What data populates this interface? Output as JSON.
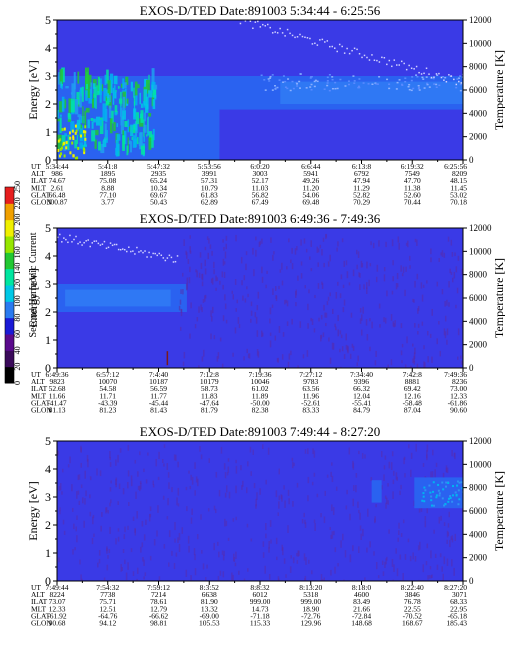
{
  "colors": {
    "background": "#3a3ae6",
    "colorbar": [
      "#000000",
      "#3a0a5a",
      "#5a0a8c",
      "#1a1ad6",
      "#2a7af0",
      "#00c8e6",
      "#00e6a0",
      "#22c832",
      "#96e600",
      "#f0f000",
      "#f0a000",
      "#e61e1e"
    ]
  },
  "colorbar": {
    "label": "Second Harmonic Current",
    "ticks": [
      "0",
      "20",
      "40",
      "60",
      "80",
      "100",
      "120",
      "140",
      "160",
      "180",
      "200",
      "220",
      "250"
    ]
  },
  "chart_data": [
    {
      "type": "heatmap",
      "title": "EXOS-D/TED   Date:891003  5:34:44 - 6:25:56",
      "ylabel": "Energy [eV]",
      "y2label": "Temperature [K]",
      "ylim": [
        0,
        5
      ],
      "y2lim": [
        0,
        12000
      ],
      "yticks": [
        "0",
        "1",
        "2",
        "3",
        "4",
        "5"
      ],
      "y2ticks": [
        "0",
        "2000",
        "4000",
        "6000",
        "8000",
        "10000",
        "12000"
      ],
      "row_labels": [
        "UT",
        "ALT",
        "ILAT",
        "MLT",
        "GLAT",
        "GLON"
      ],
      "columns": [
        [
          "5:34:44",
          "986",
          "74.67",
          "2.61",
          "66.48",
          "300.87"
        ],
        [
          "5:41:8",
          "1895",
          "75.08",
          "8.88",
          "77.10",
          "3.77"
        ],
        [
          "5:47:32",
          "2935",
          "65.24",
          "10.34",
          "69.67",
          "50.43"
        ],
        [
          "5:53:56",
          "3991",
          "57.31",
          "10.79",
          "61.83",
          "62.89"
        ],
        [
          "6:0:20",
          "3003",
          "52.17",
          "11.03",
          "56.82",
          "67.49"
        ],
        [
          "6:6:44",
          "5941",
          "49.26",
          "11.20",
          "54.06",
          "69.48"
        ],
        [
          "6:13:8",
          "6792",
          "47.94",
          "11.29",
          "52.82",
          "70.29"
        ],
        [
          "6:19:32",
          "7549",
          "47.70",
          "11.38",
          "52.60",
          "70.44"
        ],
        [
          "6:25:56",
          "8209",
          "48.15",
          "11.45",
          "53.02",
          "70.18"
        ]
      ]
    },
    {
      "type": "heatmap",
      "title": "EXOS-D/TED   Date:891003  6:49:36 - 7:49:36",
      "ylabel": "Energy [eV]",
      "y2label": "Temperature [K]",
      "ylim": [
        0,
        5
      ],
      "y2lim": [
        0,
        12000
      ],
      "yticks": [
        "0",
        "1",
        "2",
        "3",
        "4",
        "5"
      ],
      "y2ticks": [
        "0",
        "2000",
        "4000",
        "6000",
        "8000",
        "10000",
        "12000"
      ],
      "row_labels": [
        "UT",
        "ALT",
        "ILAT",
        "MLT",
        "GLAT",
        "GLON"
      ],
      "columns": [
        [
          "6:49:36",
          "9823",
          "52.68",
          "11.66",
          "-41.47",
          "81.13"
        ],
        [
          "6:57:12",
          "10070",
          "54.58",
          "11.71",
          "-43.39",
          "81.23"
        ],
        [
          "7:4:40",
          "10187",
          "56.59",
          "11.77",
          "-45.44",
          "81.43"
        ],
        [
          "7:12:8",
          "10179",
          "58.73",
          "11.83",
          "-47.64",
          "81.79"
        ],
        [
          "7:19:36",
          "10046",
          "61.02",
          "11.89",
          "-50.00",
          "82.38"
        ],
        [
          "7:27:12",
          "9783",
          "63.56",
          "11.96",
          "-52.61",
          "83.33"
        ],
        [
          "7:34:40",
          "9396",
          "66.32",
          "12.04",
          "-55.41",
          "84.79"
        ],
        [
          "7:42:8",
          "8881",
          "69.42",
          "12.16",
          "-58.48",
          "87.04"
        ],
        [
          "7:49:36",
          "8236",
          "73.00",
          "12.33",
          "-61.86",
          "90.60"
        ]
      ]
    },
    {
      "type": "heatmap",
      "title": "EXOS-D/TED   Date:891003  7:49:44 - 8:27:20",
      "ylabel": "Energy [eV]",
      "y2label": "Temperature [K]",
      "ylim": [
        0,
        5
      ],
      "y2lim": [
        0,
        12000
      ],
      "yticks": [
        "0",
        "1",
        "2",
        "3",
        "4",
        "5"
      ],
      "y2ticks": [
        "0",
        "2000",
        "4000",
        "6000",
        "8000",
        "10000",
        "12000"
      ],
      "row_labels": [
        "UT",
        "ALT",
        "ILAT",
        "MLT",
        "GLAT",
        "GLON"
      ],
      "columns": [
        [
          "7:49:44",
          "8224",
          "73.07",
          "12.33",
          "-61.92",
          "90.68"
        ],
        [
          "7:54:32",
          "7738",
          "75.71",
          "12.51",
          "-64.76",
          "94.12"
        ],
        [
          "7:59:12",
          "7214",
          "78.61",
          "12.79",
          "-66.62",
          "98.81"
        ],
        [
          "8:3:52",
          "6638",
          "81.90",
          "13.32",
          "-69.00",
          "105.53"
        ],
        [
          "8:8:32",
          "6012",
          "999.00",
          "14.73",
          "-71.18",
          "115.33"
        ],
        [
          "8:13:20",
          "5318",
          "999.00",
          "18.90",
          "-72.76",
          "129.96"
        ],
        [
          "8:18:0",
          "4600",
          "83.49",
          "21.66",
          "-72.84",
          "148.68"
        ],
        [
          "8:22:40",
          "3846",
          "76.78",
          "22.55",
          "-70.52",
          "168.67"
        ],
        [
          "8:27:20",
          "3071",
          "68.33",
          "22.95",
          "-65.18",
          "185.43"
        ]
      ]
    }
  ]
}
